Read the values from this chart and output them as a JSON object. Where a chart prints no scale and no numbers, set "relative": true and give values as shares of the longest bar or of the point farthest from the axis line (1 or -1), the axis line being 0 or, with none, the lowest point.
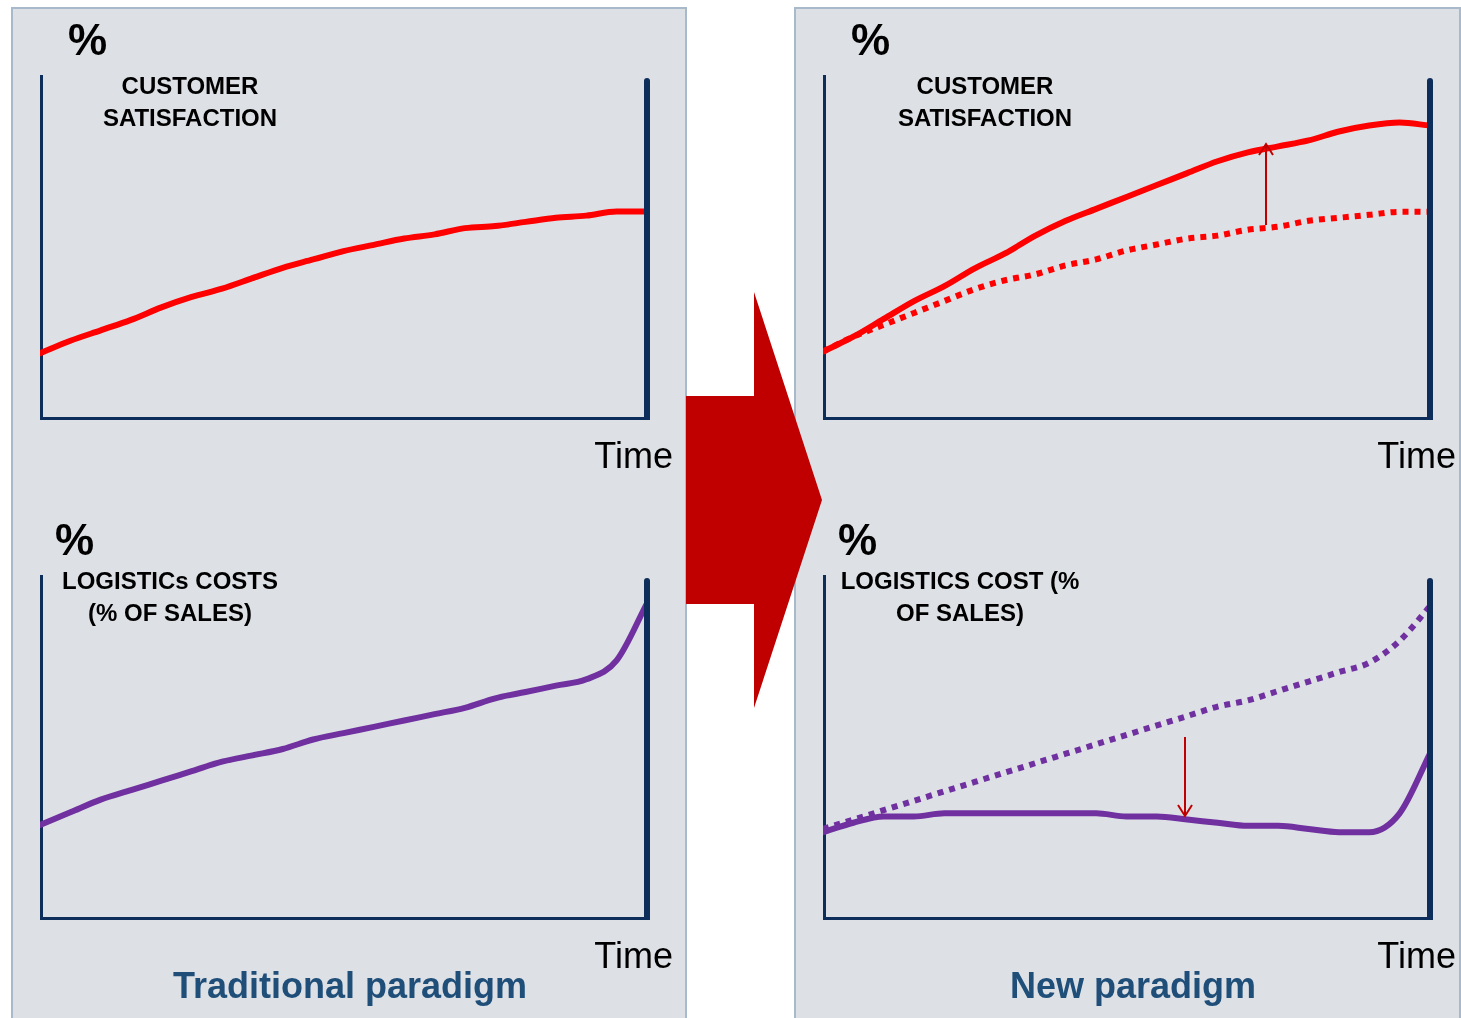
{
  "chart_data": [
    {
      "type": "line",
      "title": "CUSTOMER SATISFACTION",
      "ylabel": "%",
      "xlabel": "Time",
      "relative": true,
      "legend": false,
      "grid": false,
      "marker": "none",
      "tick_labels": false,
      "categories": [
        null,
        null,
        null,
        null,
        null,
        null,
        null,
        null,
        null,
        null,
        null,
        null,
        null,
        null,
        null,
        null,
        null,
        null,
        null,
        null,
        null
      ],
      "series": [
        {
          "color": "#ff0000",
          "line_style": "solid",
          "values": [
            0.32,
            0.38,
            0.43,
            0.48,
            0.54,
            0.59,
            0.63,
            0.68,
            0.73,
            0.77,
            0.81,
            0.84,
            0.87,
            0.89,
            0.92,
            0.93,
            0.95,
            0.97,
            0.98,
            1,
            1
          ]
        }
      ]
    },
    {
      "type": "line",
      "title": "LOGISTICs COSTS (% OF SALES)",
      "ylabel": "%",
      "xlabel": "Time",
      "relative": true,
      "legend": false,
      "grid": false,
      "marker": "none",
      "tick_labels": false,
      "annotations": [
        "Traditional paradigm"
      ],
      "categories": [
        null,
        null,
        null,
        null,
        null,
        null,
        null,
        null,
        null,
        null,
        null,
        null,
        null,
        null,
        null,
        null,
        null,
        null,
        null,
        null,
        null
      ],
      "series": [
        {
          "color": "#7030a0",
          "line_style": "solid",
          "values": [
            0.3,
            0.34,
            0.38,
            0.41,
            0.44,
            0.47,
            0.5,
            0.52,
            0.54,
            0.57,
            0.59,
            0.61,
            0.63,
            0.65,
            0.67,
            0.7,
            0.72,
            0.74,
            0.76,
            0.82,
            1
          ]
        }
      ]
    },
    {
      "type": "line",
      "title": "CUSTOMER SATISFACTION",
      "ylabel": "%",
      "xlabel": "Time",
      "relative": true,
      "legend": false,
      "grid": false,
      "marker": "none",
      "tick_labels": false,
      "categories": [
        null,
        null,
        null,
        null,
        null,
        null,
        null,
        null,
        null,
        null,
        null,
        null,
        null,
        null,
        null,
        null,
        null,
        null,
        null,
        null,
        null
      ],
      "series": [
        {
          "color": "#ff0000",
          "line_style": "solid",
          "values": [
            0.23,
            0.28,
            0.34,
            0.4,
            0.45,
            0.51,
            0.56,
            0.62,
            0.67,
            0.71,
            0.75,
            0.79,
            0.83,
            0.87,
            0.9,
            0.92,
            0.94,
            0.97,
            0.99,
            1,
            0.99
          ]
        },
        {
          "color": "#ff0000",
          "line_style": "dotted",
          "values": [
            0.23,
            0.28,
            0.32,
            0.36,
            0.4,
            0.44,
            0.47,
            0.49,
            0.52,
            0.54,
            0.57,
            0.59,
            0.61,
            0.62,
            0.64,
            0.65,
            0.67,
            0.68,
            0.69,
            0.7,
            0.7
          ]
        }
      ]
    },
    {
      "type": "line",
      "title": "LOGISTICS COST (% OF SALES)",
      "ylabel": "%",
      "xlabel": "Time",
      "relative": true,
      "legend": false,
      "grid": false,
      "marker": "none",
      "tick_labels": false,
      "annotations": [
        "New paradigm"
      ],
      "categories": [
        null,
        null,
        null,
        null,
        null,
        null,
        null,
        null,
        null,
        null,
        null,
        null,
        null,
        null,
        null,
        null,
        null,
        null,
        null,
        null,
        null
      ],
      "series": [
        {
          "color": "#7030a0",
          "line_style": "solid",
          "values": [
            0.28,
            0.31,
            0.33,
            0.33,
            0.34,
            0.34,
            0.34,
            0.34,
            0.34,
            0.34,
            0.33,
            0.33,
            0.32,
            0.31,
            0.3,
            0.3,
            0.29,
            0.28,
            0.28,
            0.34,
            0.53
          ]
        },
        {
          "color": "#7030a0",
          "line_style": "dotted",
          "values": [
            0.29,
            0.32,
            0.35,
            0.38,
            0.41,
            0.44,
            0.47,
            0.5,
            0.53,
            0.56,
            0.59,
            0.62,
            0.65,
            0.68,
            0.7,
            0.73,
            0.76,
            0.79,
            0.82,
            0.89,
            1
          ]
        }
      ]
    }
  ]
}
